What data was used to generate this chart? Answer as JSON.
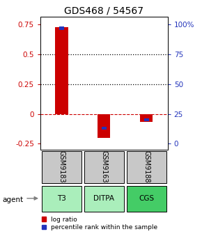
{
  "title": "GDS468 / 54567",
  "samples": [
    "GSM9183",
    "GSM9163",
    "GSM9188"
  ],
  "agents": [
    "T3",
    "DITPA",
    "CGS"
  ],
  "log_ratios": [
    0.73,
    -0.2,
    -0.065
  ],
  "percentile_ranks": [
    0.97,
    0.13,
    0.2
  ],
  "ylim_left": [
    -0.3,
    0.82
  ],
  "yticks_left": [
    -0.25,
    0.0,
    0.25,
    0.5,
    0.75
  ],
  "ytick_labels_left": [
    "-0.25",
    "0",
    "0.25",
    "0.5",
    "0.75"
  ],
  "yticks_right_vals": [
    -0.25,
    0.0,
    0.25,
    0.5,
    0.75
  ],
  "ytick_labels_right": [
    "0",
    "25",
    "50",
    "75",
    "100%"
  ],
  "hlines_dotted": [
    0.25,
    0.5
  ],
  "color_log": "#cc0000",
  "color_pct": "#2233bb",
  "color_sample_bg": "#c8c8c8",
  "color_agent_bg_light": "#aaeebb",
  "color_agent_bg_dark": "#44cc66",
  "title_fontsize": 10,
  "tick_fontsize": 7.5,
  "legend_fontsize": 6.5,
  "bar_width": 0.3,
  "pct_bar_width": 0.12,
  "pct_bar_height": 0.025
}
